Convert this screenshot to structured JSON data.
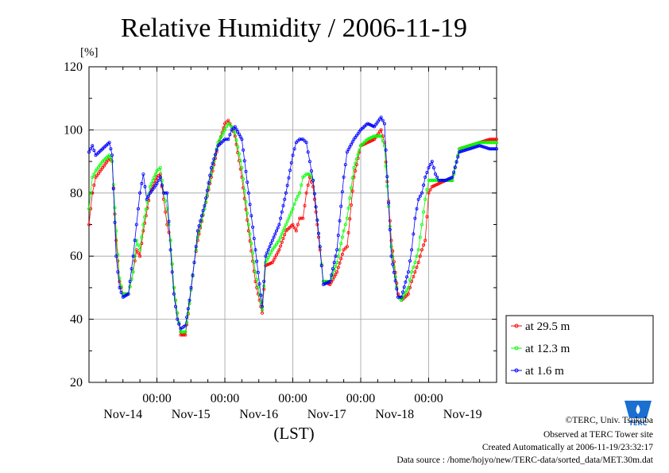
{
  "chart_data": {
    "type": "line",
    "title": "Relative Humidity / 2006-11-19",
    "unit_label": "[%]",
    "xlabel": "(LST)",
    "ylim": [
      20,
      120
    ],
    "yticks": [
      "20",
      "40",
      "60",
      "80",
      "100",
      "120"
    ],
    "x_range_days": [
      0,
      6
    ],
    "time_ticks": [
      {
        "x": 1,
        "label": "00:00"
      },
      {
        "x": 2,
        "label": "00:00"
      },
      {
        "x": 3,
        "label": "00:00"
      },
      {
        "x": 4,
        "label": "00:00"
      },
      {
        "x": 5,
        "label": "00:00"
      }
    ],
    "date_labels": [
      {
        "x": 0.5,
        "label": "Nov-14"
      },
      {
        "x": 1.5,
        "label": "Nov-15"
      },
      {
        "x": 2.5,
        "label": "Nov-16"
      },
      {
        "x": 3.5,
        "label": "Nov-17"
      },
      {
        "x": 4.5,
        "label": "Nov-18"
      },
      {
        "x": 5.5,
        "label": "Nov-19"
      }
    ],
    "grid": true,
    "legend_position": "bottom-right",
    "series": [
      {
        "name": "at 29.5 m",
        "color": "#ff0000",
        "points": [
          [
            0,
            70
          ],
          [
            0.05,
            80
          ],
          [
            0.1,
            85
          ],
          [
            0.2,
            88
          ],
          [
            0.3,
            91
          ],
          [
            0.34,
            90
          ],
          [
            0.4,
            65
          ],
          [
            0.45,
            52
          ],
          [
            0.5,
            48
          ],
          [
            0.58,
            48
          ],
          [
            0.65,
            55
          ],
          [
            0.7,
            62
          ],
          [
            0.75,
            60
          ],
          [
            0.8,
            68
          ],
          [
            0.9,
            80
          ],
          [
            1,
            85
          ],
          [
            1.05,
            86
          ],
          [
            1.1,
            78
          ],
          [
            1.15,
            70
          ],
          [
            1.2,
            65
          ],
          [
            1.25,
            50
          ],
          [
            1.3,
            42
          ],
          [
            1.35,
            35
          ],
          [
            1.42,
            35
          ],
          [
            1.48,
            45
          ],
          [
            1.55,
            58
          ],
          [
            1.6,
            65
          ],
          [
            1.7,
            75
          ],
          [
            1.8,
            85
          ],
          [
            1.9,
            95
          ],
          [
            2,
            102
          ],
          [
            2.05,
            103
          ],
          [
            2.1,
            101
          ],
          [
            2.15,
            98
          ],
          [
            2.25,
            85
          ],
          [
            2.35,
            68
          ],
          [
            2.45,
            52
          ],
          [
            2.55,
            42
          ],
          [
            2.6,
            57
          ],
          [
            2.7,
            58
          ],
          [
            2.8,
            62
          ],
          [
            2.9,
            68
          ],
          [
            3,
            70
          ],
          [
            3.05,
            68
          ],
          [
            3.1,
            72
          ],
          [
            3.15,
            72
          ],
          [
            3.2,
            80
          ],
          [
            3.25,
            85
          ],
          [
            3.3,
            82
          ],
          [
            3.4,
            62
          ],
          [
            3.45,
            52
          ],
          [
            3.55,
            51
          ],
          [
            3.65,
            55
          ],
          [
            3.75,
            62
          ],
          [
            3.8,
            63
          ],
          [
            3.9,
            85
          ],
          [
            4,
            95
          ],
          [
            4.1,
            96
          ],
          [
            4.2,
            97
          ],
          [
            4.3,
            100
          ],
          [
            4.35,
            96
          ],
          [
            4.45,
            65
          ],
          [
            4.55,
            48
          ],
          [
            4.6,
            46
          ],
          [
            4.7,
            48
          ],
          [
            4.75,
            52
          ],
          [
            4.8,
            55
          ],
          [
            4.85,
            58
          ],
          [
            4.9,
            62
          ],
          [
            4.95,
            65
          ],
          [
            5,
            80
          ],
          [
            5.05,
            82
          ],
          [
            5.15,
            83
          ],
          [
            5.25,
            84
          ],
          [
            5.35,
            84
          ],
          [
            5.45,
            94
          ],
          [
            5.6,
            95
          ],
          [
            5.75,
            96
          ],
          [
            5.9,
            97
          ],
          [
            6,
            97
          ]
        ]
      },
      {
        "name": "at 12.3 m",
        "color": "#00ff00",
        "points": [
          [
            0,
            75
          ],
          [
            0.05,
            85
          ],
          [
            0.1,
            87
          ],
          [
            0.2,
            90
          ],
          [
            0.3,
            92
          ],
          [
            0.34,
            90
          ],
          [
            0.4,
            68
          ],
          [
            0.45,
            53
          ],
          [
            0.5,
            48
          ],
          [
            0.58,
            48
          ],
          [
            0.65,
            55
          ],
          [
            0.7,
            65
          ],
          [
            0.75,
            62
          ],
          [
            0.8,
            70
          ],
          [
            0.9,
            82
          ],
          [
            1,
            87
          ],
          [
            1.05,
            88
          ],
          [
            1.1,
            80
          ],
          [
            1.15,
            75
          ],
          [
            1.2,
            65
          ],
          [
            1.25,
            50
          ],
          [
            1.3,
            42
          ],
          [
            1.35,
            36
          ],
          [
            1.42,
            36
          ],
          [
            1.48,
            45
          ],
          [
            1.55,
            58
          ],
          [
            1.6,
            66
          ],
          [
            1.7,
            75
          ],
          [
            1.8,
            86
          ],
          [
            1.9,
            96
          ],
          [
            2,
            100
          ],
          [
            2.05,
            102
          ],
          [
            2.1,
            101
          ],
          [
            2.15,
            99
          ],
          [
            2.25,
            88
          ],
          [
            2.35,
            70
          ],
          [
            2.45,
            55
          ],
          [
            2.55,
            43
          ],
          [
            2.6,
            58
          ],
          [
            2.7,
            62
          ],
          [
            2.8,
            65
          ],
          [
            2.9,
            70
          ],
          [
            3,
            75
          ],
          [
            3.05,
            78
          ],
          [
            3.1,
            80
          ],
          [
            3.15,
            85
          ],
          [
            3.2,
            86
          ],
          [
            3.25,
            86
          ],
          [
            3.3,
            84
          ],
          [
            3.4,
            63
          ],
          [
            3.45,
            52
          ],
          [
            3.55,
            52
          ],
          [
            3.65,
            58
          ],
          [
            3.75,
            68
          ],
          [
            3.8,
            72
          ],
          [
            3.9,
            88
          ],
          [
            4,
            95
          ],
          [
            4.1,
            97
          ],
          [
            4.2,
            98
          ],
          [
            4.3,
            98
          ],
          [
            4.35,
            95
          ],
          [
            4.45,
            63
          ],
          [
            4.55,
            47
          ],
          [
            4.6,
            46
          ],
          [
            4.7,
            50
          ],
          [
            4.75,
            55
          ],
          [
            4.8,
            58
          ],
          [
            4.85,
            62
          ],
          [
            4.9,
            70
          ],
          [
            4.95,
            78
          ],
          [
            5,
            84
          ],
          [
            5.05,
            84
          ],
          [
            5.15,
            84
          ],
          [
            5.25,
            84
          ],
          [
            5.35,
            84
          ],
          [
            5.45,
            94
          ],
          [
            5.6,
            95
          ],
          [
            5.75,
            96
          ],
          [
            5.9,
            96
          ],
          [
            6,
            96
          ]
        ]
      },
      {
        "name": "at 1.6 m",
        "color": "#0000ff",
        "points": [
          [
            0,
            93
          ],
          [
            0.05,
            95
          ],
          [
            0.1,
            92
          ],
          [
            0.2,
            94
          ],
          [
            0.3,
            96
          ],
          [
            0.34,
            92
          ],
          [
            0.4,
            60
          ],
          [
            0.45,
            50
          ],
          [
            0.5,
            47
          ],
          [
            0.58,
            48
          ],
          [
            0.65,
            60
          ],
          [
            0.7,
            70
          ],
          [
            0.75,
            80
          ],
          [
            0.8,
            86
          ],
          [
            0.85,
            78
          ],
          [
            0.9,
            80
          ],
          [
            1,
            83
          ],
          [
            1.05,
            85
          ],
          [
            1.1,
            80
          ],
          [
            1.15,
            80
          ],
          [
            1.2,
            62
          ],
          [
            1.25,
            48
          ],
          [
            1.3,
            40
          ],
          [
            1.35,
            37
          ],
          [
            1.42,
            38
          ],
          [
            1.48,
            46
          ],
          [
            1.55,
            58
          ],
          [
            1.6,
            68
          ],
          [
            1.7,
            76
          ],
          [
            1.8,
            88
          ],
          [
            1.9,
            95
          ],
          [
            2,
            97
          ],
          [
            2.05,
            97
          ],
          [
            2.1,
            100
          ],
          [
            2.15,
            101
          ],
          [
            2.25,
            97
          ],
          [
            2.35,
            80
          ],
          [
            2.45,
            62
          ],
          [
            2.55,
            44
          ],
          [
            2.6,
            60
          ],
          [
            2.7,
            65
          ],
          [
            2.8,
            70
          ],
          [
            2.9,
            80
          ],
          [
            3,
            92
          ],
          [
            3.05,
            96
          ],
          [
            3.1,
            97
          ],
          [
            3.15,
            97
          ],
          [
            3.2,
            96
          ],
          [
            3.25,
            90
          ],
          [
            3.3,
            84
          ],
          [
            3.4,
            63
          ],
          [
            3.45,
            51
          ],
          [
            3.55,
            52
          ],
          [
            3.65,
            62
          ],
          [
            3.75,
            85
          ],
          [
            3.8,
            93
          ],
          [
            3.9,
            97
          ],
          [
            4,
            100
          ],
          [
            4.1,
            102
          ],
          [
            4.2,
            101
          ],
          [
            4.3,
            104
          ],
          [
            4.35,
            102
          ],
          [
            4.45,
            60
          ],
          [
            4.55,
            47
          ],
          [
            4.6,
            47
          ],
          [
            4.7,
            55
          ],
          [
            4.75,
            62
          ],
          [
            4.8,
            72
          ],
          [
            4.85,
            78
          ],
          [
            4.9,
            80
          ],
          [
            4.95,
            85
          ],
          [
            5,
            88
          ],
          [
            5.05,
            90
          ],
          [
            5.1,
            86
          ],
          [
            5.15,
            84
          ],
          [
            5.25,
            84
          ],
          [
            5.35,
            85
          ],
          [
            5.45,
            93
          ],
          [
            5.6,
            94
          ],
          [
            5.75,
            95
          ],
          [
            5.9,
            94
          ],
          [
            6,
            94
          ]
        ]
      }
    ]
  },
  "credits": {
    "copyright": "©TERC, Univ. Tsukuba",
    "observed": "Observed at TERC Tower site",
    "created": "Created Automatically at 2006-11-19/23:32:17",
    "source": "Data source : /home/hojyo/new/TERC-data/sorted_data/MET.30m.dat"
  },
  "logo": {
    "text": "TERC",
    "color": "#1a6fd0"
  }
}
